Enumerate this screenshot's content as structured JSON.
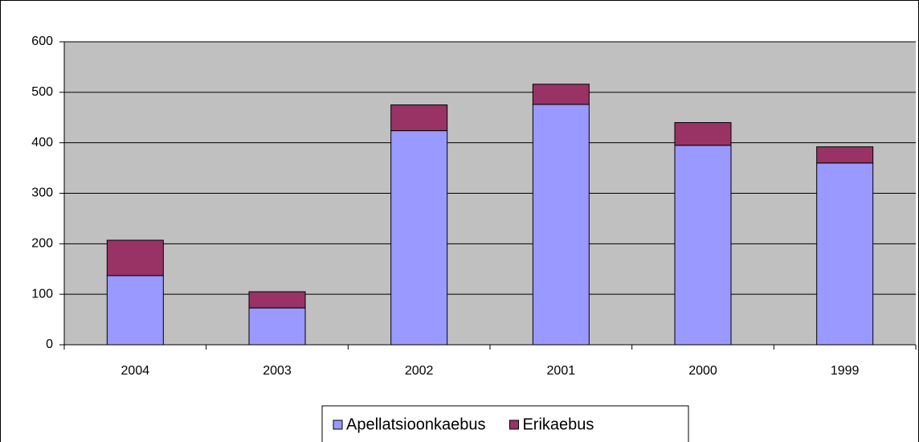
{
  "chart_data": {
    "type": "stacked_bar",
    "categories": [
      "2004",
      "2003",
      "2002",
      "2001",
      "2000",
      "1999"
    ],
    "series": [
      {
        "name": "Apellatsioonkaebus",
        "color": "#9999ff",
        "values": [
          137,
          73,
          424,
          476,
          395,
          360
        ]
      },
      {
        "name": "Erikaebus",
        "color": "#993366",
        "values": [
          70,
          32,
          51,
          40,
          45,
          32
        ]
      }
    ],
    "ylim": [
      0,
      600
    ],
    "yticks": [
      0,
      100,
      200,
      300,
      400,
      500,
      600
    ],
    "grid": true,
    "legend": "bottom"
  }
}
